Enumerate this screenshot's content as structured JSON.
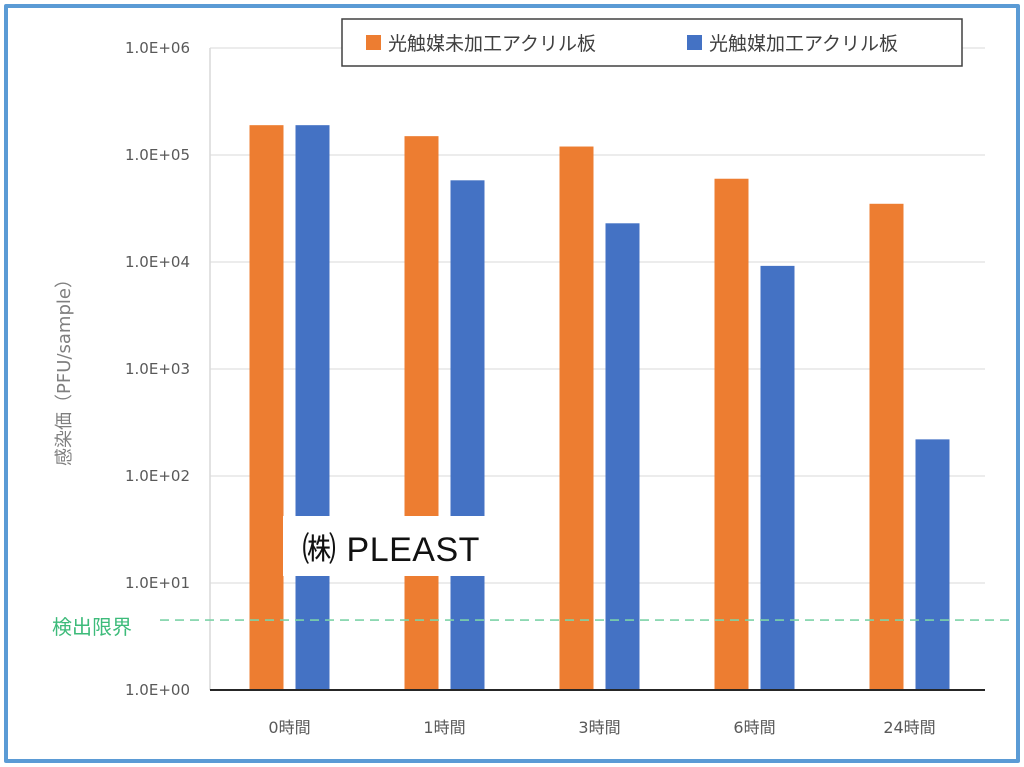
{
  "chart_data": {
    "type": "bar",
    "yscale": "log",
    "ylim": [
      1,
      1000000
    ],
    "yticks": [
      "1.0E+00",
      "1.0E+01",
      "1.0E+02",
      "1.0E+03",
      "1.0E+04",
      "1.0E+05",
      "1.0E+06"
    ],
    "ylabel": "感染価（PFU/sample）",
    "categories": [
      "0時間",
      "1時間",
      "3時間",
      "6時間",
      "24時間"
    ],
    "series": [
      {
        "name": "光触媒未加工アクリル板",
        "color": "#ed7d31",
        "values": [
          190000,
          150000,
          120000,
          60000,
          35000
        ]
      },
      {
        "name": "光触媒加工アクリル板",
        "color": "#4472c4",
        "values": [
          190000,
          58000,
          23000,
          9200,
          220
        ]
      }
    ],
    "detection_limit": {
      "label": "検出限界",
      "value": 4.5,
      "color": "#7dd3a8"
    },
    "grid": true,
    "legend_position": "top"
  },
  "watermark": {
    "text": "㈱ PLEAST"
  }
}
